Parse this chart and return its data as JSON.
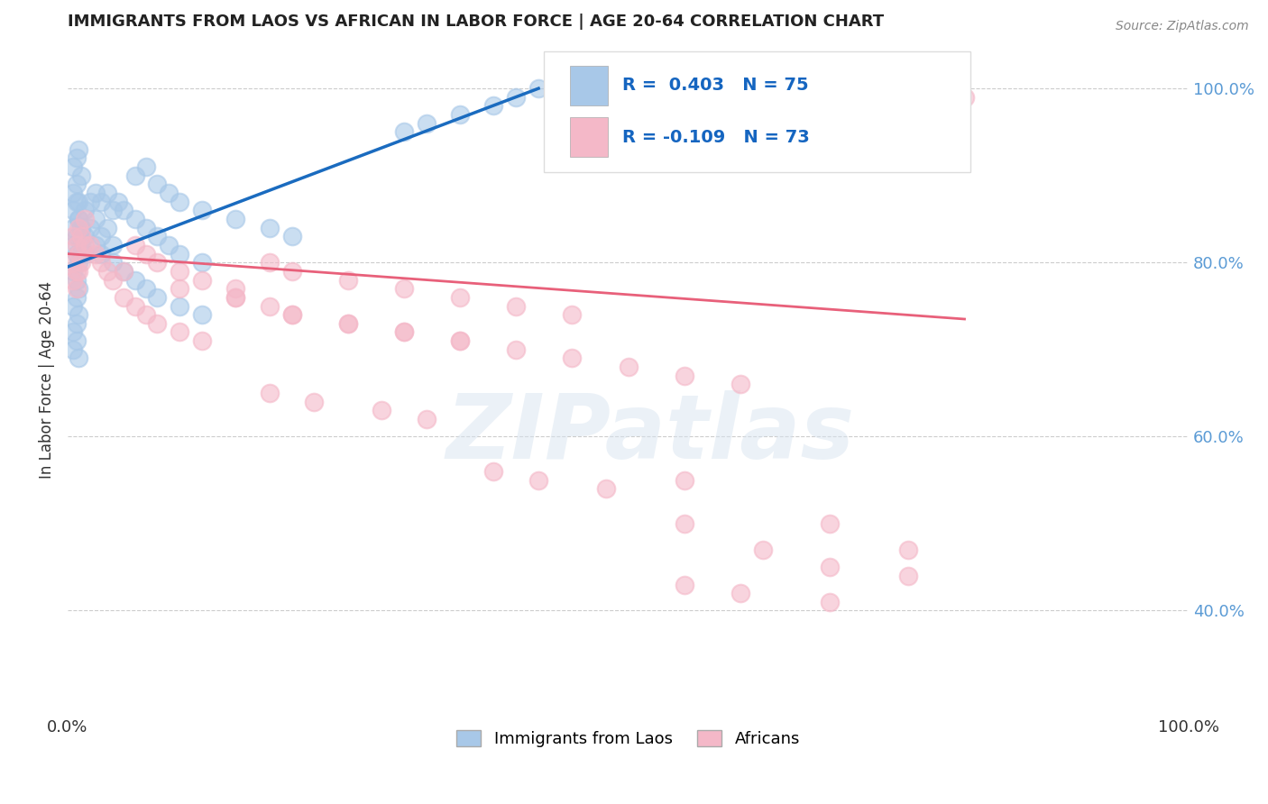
{
  "title": "IMMIGRANTS FROM LAOS VS AFRICAN IN LABOR FORCE | AGE 20-64 CORRELATION CHART",
  "source_text": "Source: ZipAtlas.com",
  "ylabel": "In Labor Force | Age 20-64",
  "xlim": [
    0.0,
    1.0
  ],
  "ylim": [
    0.28,
    1.05
  ],
  "y_ticks_right": [
    0.4,
    0.6,
    0.8,
    1.0
  ],
  "y_tick_labels_right": [
    "40.0%",
    "60.0%",
    "80.0%",
    "100.0%"
  ],
  "blue_R": 0.403,
  "blue_N": 75,
  "pink_R": -0.109,
  "pink_N": 73,
  "legend_label_blue": "Immigrants from Laos",
  "legend_label_pink": "Africans",
  "watermark": "ZIPatlas",
  "blue_color": "#a8c8e8",
  "pink_color": "#f4b8c8",
  "blue_line_color": "#1a6bbf",
  "pink_line_color": "#e8607a",
  "background_color": "#ffffff",
  "blue_scatter_x": [
    0.005,
    0.008,
    0.01,
    0.012,
    0.015,
    0.005,
    0.008,
    0.01,
    0.012,
    0.015,
    0.005,
    0.008,
    0.01,
    0.012,
    0.015,
    0.005,
    0.008,
    0.01,
    0.012,
    0.005,
    0.008,
    0.01,
    0.02,
    0.025,
    0.03,
    0.035,
    0.04,
    0.045,
    0.05,
    0.02,
    0.025,
    0.03,
    0.035,
    0.04,
    0.06,
    0.07,
    0.08,
    0.09,
    0.1,
    0.12,
    0.06,
    0.07,
    0.08,
    0.09,
    0.1,
    0.12,
    0.15,
    0.18,
    0.2,
    0.005,
    0.008,
    0.01,
    0.005,
    0.008,
    0.01,
    0.005,
    0.008,
    0.005,
    0.008,
    0.01,
    0.025,
    0.03,
    0.04,
    0.05,
    0.06,
    0.07,
    0.08,
    0.1,
    0.12,
    0.3,
    0.32,
    0.35,
    0.38,
    0.4,
    0.42
  ],
  "blue_scatter_y": [
    0.84,
    0.83,
    0.85,
    0.84,
    0.83,
    0.82,
    0.81,
    0.8,
    0.82,
    0.81,
    0.86,
    0.87,
    0.85,
    0.84,
    0.86,
    0.88,
    0.89,
    0.87,
    0.9,
    0.91,
    0.92,
    0.93,
    0.87,
    0.88,
    0.87,
    0.88,
    0.86,
    0.87,
    0.86,
    0.84,
    0.85,
    0.83,
    0.84,
    0.82,
    0.85,
    0.84,
    0.83,
    0.82,
    0.81,
    0.8,
    0.9,
    0.91,
    0.89,
    0.88,
    0.87,
    0.86,
    0.85,
    0.84,
    0.83,
    0.79,
    0.78,
    0.77,
    0.75,
    0.76,
    0.74,
    0.72,
    0.73,
    0.7,
    0.71,
    0.69,
    0.82,
    0.81,
    0.8,
    0.79,
    0.78,
    0.77,
    0.76,
    0.75,
    0.74,
    0.95,
    0.96,
    0.97,
    0.98,
    0.99,
    1.0
  ],
  "pink_scatter_x": [
    0.005,
    0.008,
    0.01,
    0.012,
    0.015,
    0.005,
    0.008,
    0.01,
    0.012,
    0.015,
    0.005,
    0.008,
    0.01,
    0.02,
    0.025,
    0.03,
    0.035,
    0.04,
    0.05,
    0.06,
    0.07,
    0.08,
    0.1,
    0.12,
    0.15,
    0.18,
    0.2,
    0.25,
    0.3,
    0.35,
    0.4,
    0.45,
    0.05,
    0.06,
    0.07,
    0.08,
    0.1,
    0.12,
    0.15,
    0.18,
    0.2,
    0.25,
    0.3,
    0.35,
    0.1,
    0.15,
    0.2,
    0.25,
    0.3,
    0.35,
    0.4,
    0.45,
    0.5,
    0.55,
    0.6,
    0.18,
    0.22,
    0.28,
    0.32,
    0.38,
    0.42,
    0.48,
    0.55,
    0.62,
    0.68,
    0.75,
    0.55,
    0.6,
    0.68,
    0.55,
    0.68,
    0.75,
    0.8
  ],
  "pink_scatter_y": [
    0.83,
    0.82,
    0.84,
    0.83,
    0.85,
    0.8,
    0.79,
    0.81,
    0.8,
    0.82,
    0.78,
    0.77,
    0.79,
    0.82,
    0.81,
    0.8,
    0.79,
    0.78,
    0.79,
    0.82,
    0.81,
    0.8,
    0.79,
    0.78,
    0.77,
    0.8,
    0.79,
    0.78,
    0.77,
    0.76,
    0.75,
    0.74,
    0.76,
    0.75,
    0.74,
    0.73,
    0.72,
    0.71,
    0.76,
    0.75,
    0.74,
    0.73,
    0.72,
    0.71,
    0.77,
    0.76,
    0.74,
    0.73,
    0.72,
    0.71,
    0.7,
    0.69,
    0.68,
    0.67,
    0.66,
    0.65,
    0.64,
    0.63,
    0.62,
    0.56,
    0.55,
    0.54,
    0.5,
    0.47,
    0.45,
    0.44,
    0.43,
    0.42,
    0.41,
    0.55,
    0.5,
    0.47,
    0.99
  ],
  "blue_trend_x": [
    0.0,
    0.42
  ],
  "blue_trend_y": [
    0.795,
    1.0
  ],
  "pink_trend_x": [
    0.0,
    0.8
  ],
  "pink_trend_y": [
    0.81,
    0.735
  ]
}
